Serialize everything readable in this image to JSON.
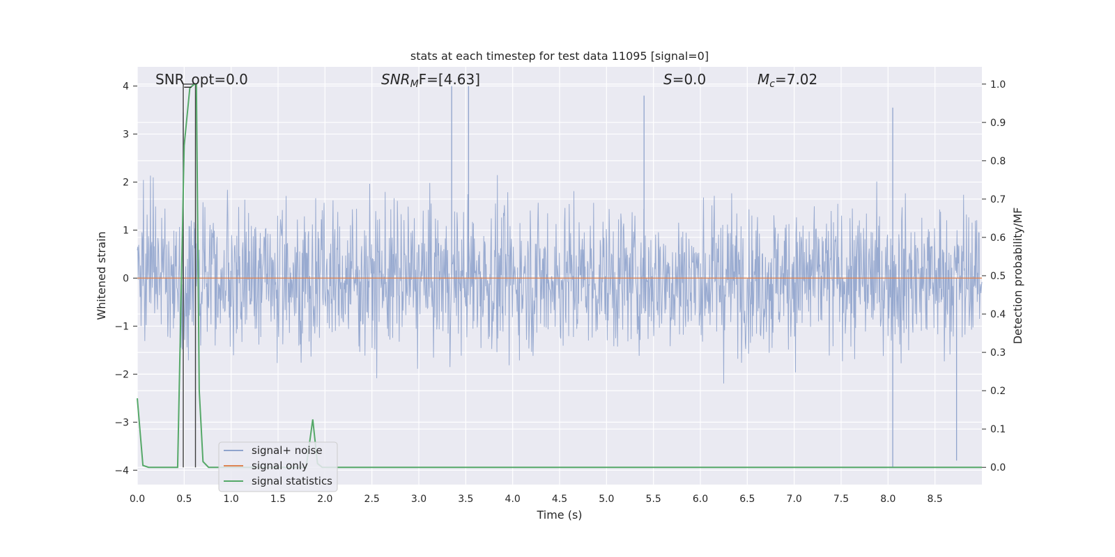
{
  "chart_data": {
    "type": "line",
    "title": "stats at each timestep for test data 11095 [signal=0]",
    "xlabel": "Time (s)",
    "ylabel": "Whitened strain",
    "ylabel_right": "Detection probability/MF",
    "xlim": [
      0.0,
      9.0
    ],
    "ylim": [
      -4.3,
      4.4
    ],
    "ylim_right": [
      -0.045,
      1.045
    ],
    "x_ticks": [
      "0.0",
      "0.5",
      "1.0",
      "1.5",
      "2.0",
      "2.5",
      "3.0",
      "3.5",
      "4.0",
      "4.5",
      "5.0",
      "5.5",
      "6.0",
      "6.5",
      "7.0",
      "7.5",
      "8.0",
      "8.5"
    ],
    "y_ticks": [
      "−4",
      "−3",
      "−2",
      "−1",
      "0",
      "1",
      "2",
      "3",
      "4"
    ],
    "y_ticks_right": [
      "0.0",
      "0.1",
      "0.2",
      "0.3",
      "0.4",
      "0.5",
      "0.6",
      "0.7",
      "0.8",
      "0.9",
      "1.0"
    ],
    "grid": true,
    "legend_position": "lower-left",
    "annotations": {
      "snr_opt": "SNR_opt=0.0",
      "snr_mf_main": "SNR",
      "snr_mf_sub": "M",
      "snr_mf_rest": "F=[4.63]",
      "s_main": "S",
      "s_rest": "=0.0",
      "mc_main": "M",
      "mc_sub": "c",
      "mc_rest": "=7.02"
    },
    "series": [
      {
        "name": "signal+ noise",
        "color": "#8fa3cc",
        "style": "dense noise, amplitude envelope ~±1.6 with peaks to ~±3.9",
        "notable_peaks": [
          {
            "x": 0.49,
            "y": 3.45
          },
          {
            "x": 3.35,
            "y": 4.0
          },
          {
            "x": 3.53,
            "y": 4.0
          },
          {
            "x": 5.4,
            "y": 3.8
          },
          {
            "x": 8.05,
            "y": 3.55
          },
          {
            "x": 8.05,
            "y": -3.95
          },
          {
            "x": 8.73,
            "y": -3.8
          }
        ]
      },
      {
        "name": "signal only",
        "color": "#dd8452",
        "x": [
          0.0,
          9.0
        ],
        "y": [
          0.0,
          0.0
        ]
      },
      {
        "name": "signal statistics",
        "color": "#55a868",
        "axis": "right",
        "x": [
          0.0,
          0.06,
          0.12,
          0.43,
          0.5,
          0.56,
          0.61,
          0.63,
          0.66,
          0.7,
          0.76,
          0.9,
          1.8,
          1.87,
          1.92,
          1.97,
          2.1,
          9.0
        ],
        "y": [
          0.18,
          0.005,
          0.0,
          0.0,
          0.84,
          0.99,
          1.0,
          1.0,
          0.2,
          0.015,
          0.0,
          0.0,
          0.0,
          0.125,
          0.01,
          0.0,
          0.0,
          0.0
        ]
      }
    ],
    "markers": [
      {
        "name": "window-bracket",
        "color": "#3d3d3d",
        "x_start": 0.49,
        "x_end": 0.62,
        "y_top": 1.0,
        "y_bottom": 0.0
      }
    ]
  }
}
